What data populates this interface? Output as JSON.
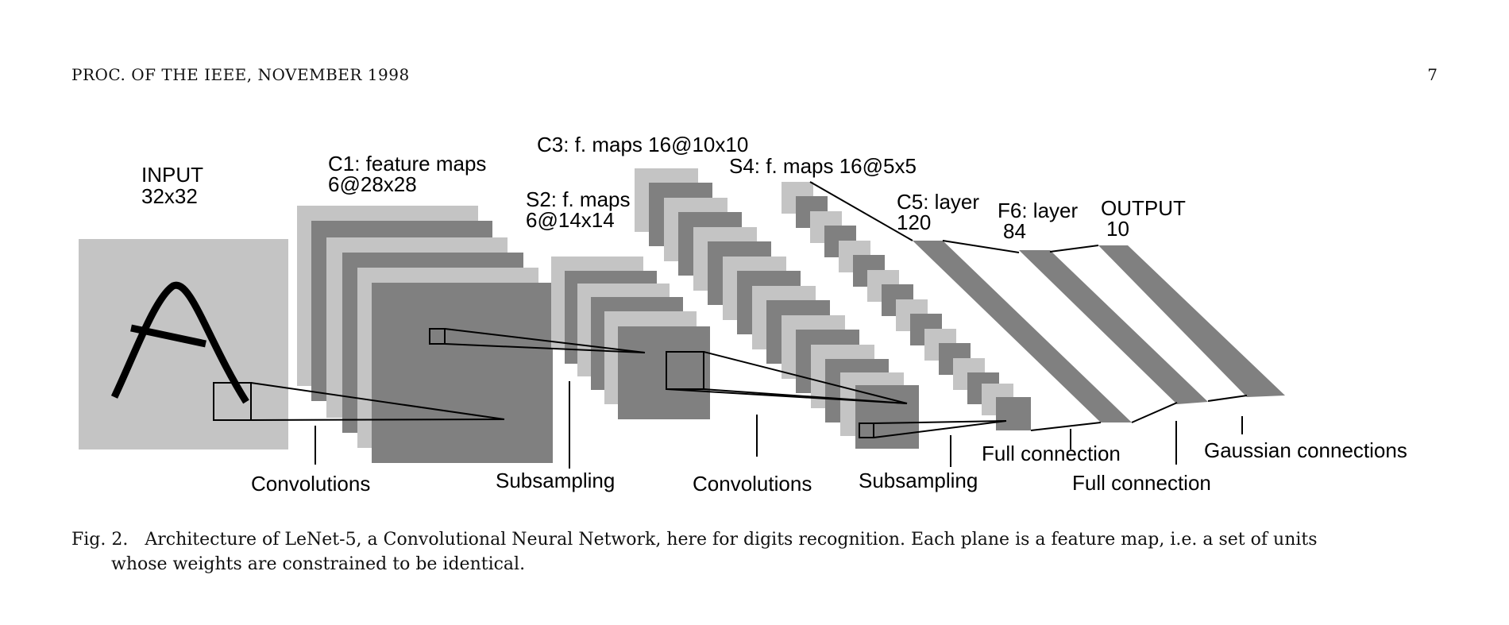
{
  "header": {
    "journal": "PROC. OF THE IEEE, NOVEMBER 1998",
    "page_number": "7"
  },
  "figure": {
    "layers": {
      "input": {
        "title": "INPUT",
        "size": "32x32"
      },
      "c1": {
        "title": "C1: feature maps",
        "size": "6@28x28"
      },
      "s2": {
        "title": "S2: f. maps",
        "size": "6@14x14"
      },
      "c3": {
        "title": "C3: f. maps 16@10x10"
      },
      "s4": {
        "title": "S4: f. maps 16@5x5"
      },
      "c5": {
        "title": "C5: layer",
        "size": "120"
      },
      "f6": {
        "title": "F6: layer",
        "size": "84"
      },
      "output": {
        "title": "OUTPUT",
        "size": "10"
      }
    },
    "operations": {
      "conv1": "Convolutions",
      "sub1": "Subsampling",
      "conv2": "Convolutions",
      "sub2": "Subsampling",
      "full1": "Full connection",
      "full2": "Full connection",
      "gaussian": "Gaussian connections"
    },
    "colors": {
      "light_gray": "#c4c4c4",
      "dark_gray": "#808080",
      "ink": "#000000"
    }
  },
  "caption": {
    "label": "Fig. 2.",
    "line1": "Architecture of LeNet-5, a Convolutional Neural Network, here for digits recognition. Each plane is a feature map, i.e. a set of units",
    "line2": "whose weights are constrained to be identical."
  }
}
